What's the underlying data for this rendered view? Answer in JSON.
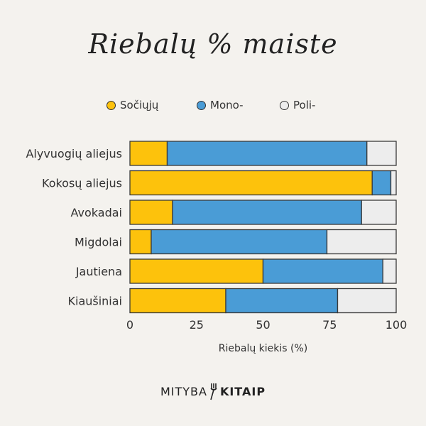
{
  "chart_data": {
    "type": "bar",
    "orientation": "horizontal",
    "stacked": true,
    "title": "Riebalų % maiste",
    "xlabel": "Riebalų kiekis (%)",
    "ylabel": "",
    "xlim": [
      0,
      100
    ],
    "xticks": [
      "0",
      "25",
      "50",
      "75",
      "100"
    ],
    "grid": false,
    "legend_position": "top",
    "categories": [
      "Alyvuogių aliejus",
      "Kokosų aliejus",
      "Avokadai",
      "Migdolai",
      "Jautiena",
      "Kiaušiniai"
    ],
    "series": [
      {
        "name": "Sočiųjų",
        "color": "#fdc20c",
        "values": [
          14,
          91,
          16,
          8,
          50,
          36
        ]
      },
      {
        "name": "Mono-",
        "color": "#4a9cd6",
        "values": [
          75,
          7,
          71,
          66,
          45,
          42
        ]
      },
      {
        "name": "Poli-",
        "color": "#ededed",
        "values": [
          11,
          2,
          13,
          26,
          5,
          22
        ]
      }
    ]
  },
  "logo": {
    "left": "MITYBA",
    "right": "KITAIP"
  }
}
